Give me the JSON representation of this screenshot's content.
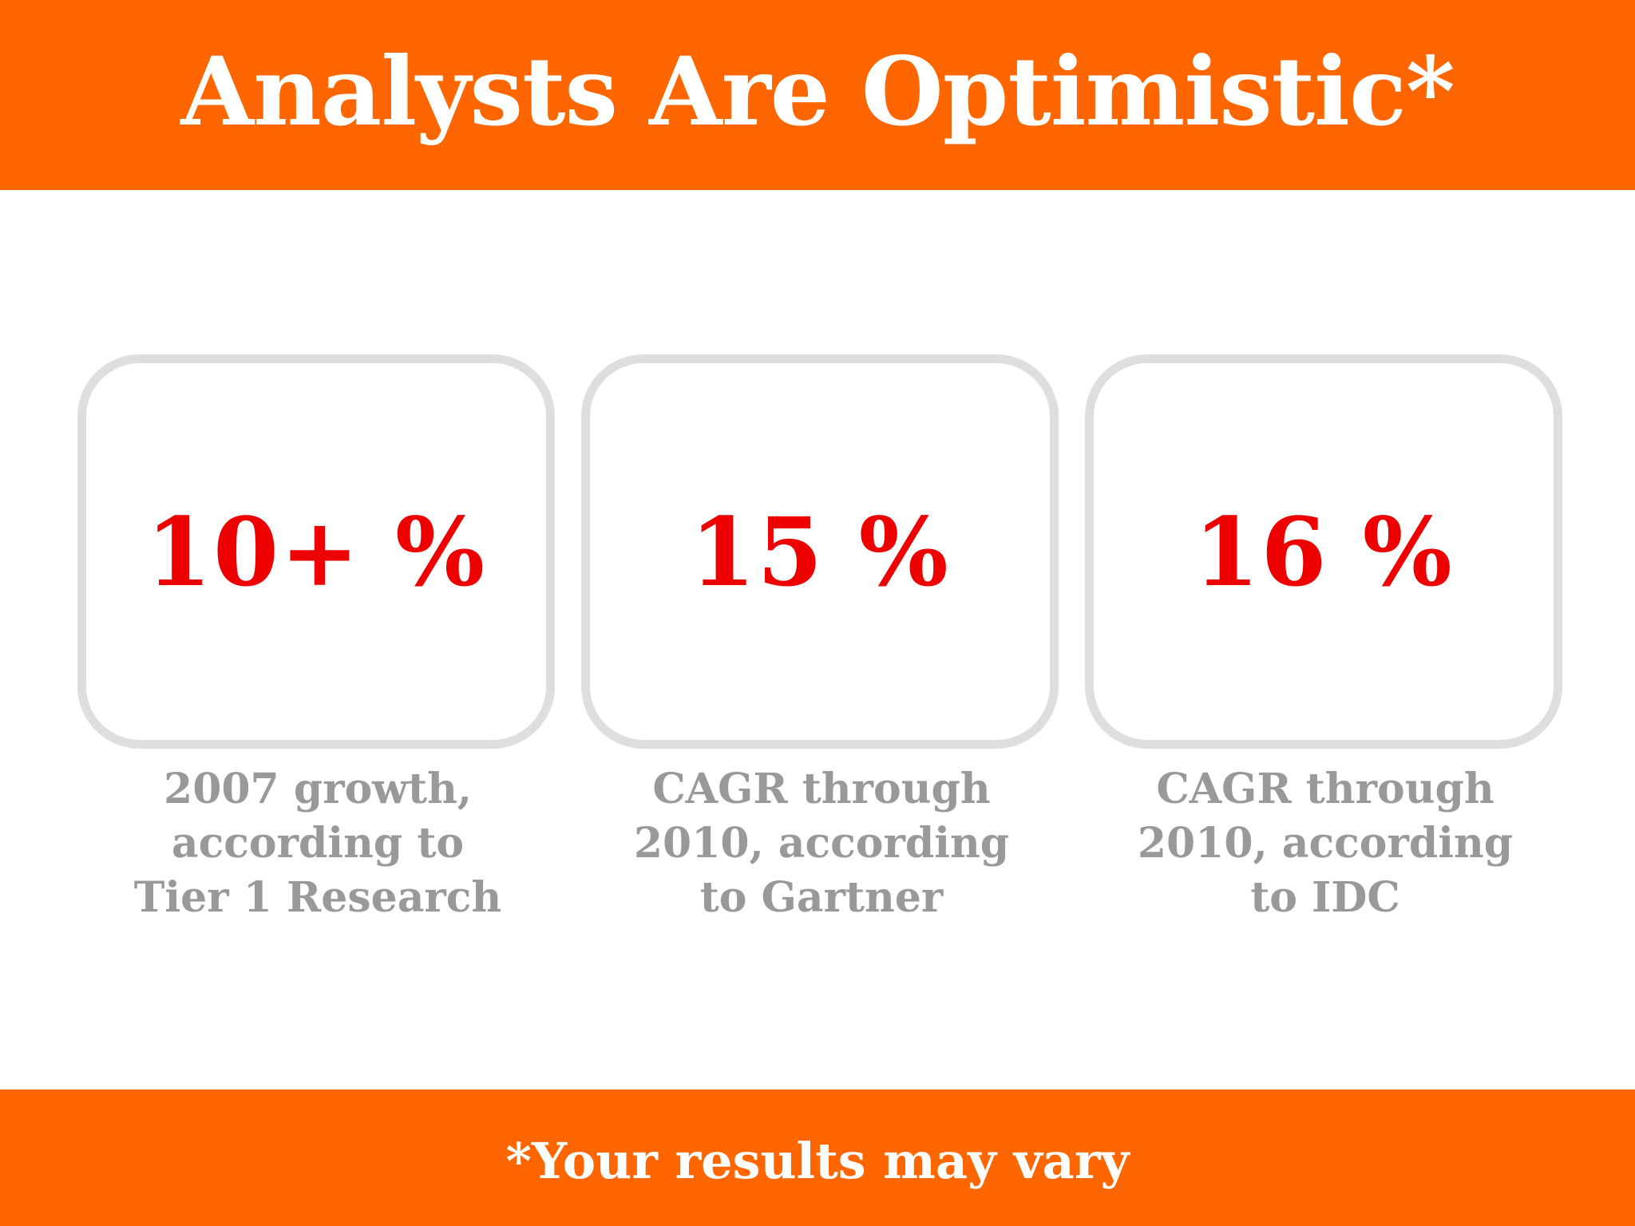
{
  "header": {
    "title": "Analysts Are Optimistic*"
  },
  "stats": [
    {
      "value": "10+ %",
      "caption_lines": [
        "2007 growth,",
        "according to",
        "Tier 1 Research"
      ]
    },
    {
      "value": "15 %",
      "caption_lines": [
        "CAGR through",
        "2010, according",
        "to Gartner"
      ]
    },
    {
      "value": "16 %",
      "caption_lines": [
        "CAGR through",
        "2010, according",
        "to IDC"
      ]
    }
  ],
  "footer": {
    "note": "*Your results may vary"
  },
  "colors": {
    "accent_orange": "#ff6600",
    "value_red": "#ee0000",
    "caption_gray": "#999999",
    "box_border": "#dedede"
  }
}
